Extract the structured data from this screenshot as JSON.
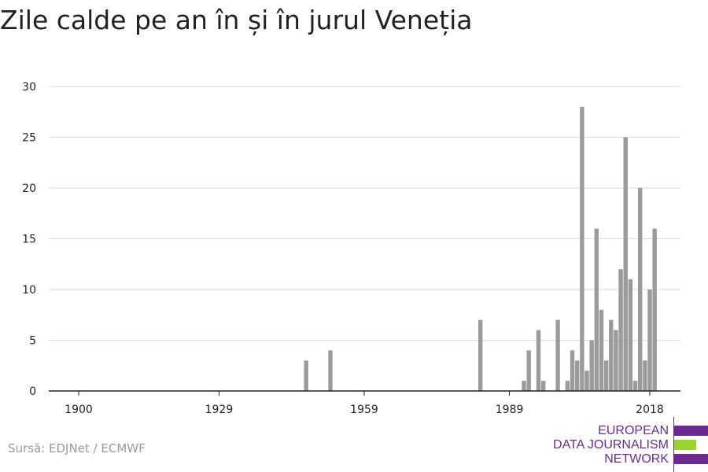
{
  "title": "Zile calde pe an în și în jurul Veneția",
  "source": "Sursă: EDJNet / ECMWF",
  "logo": {
    "lines": [
      "EUROPEAN",
      "DATA JOURNALISM",
      "NETWORK"
    ],
    "colors": {
      "purple": "#6b2a8f",
      "green": "#9bd42a"
    }
  },
  "colors": {
    "bar": "#9b9b9b",
    "grid": "#dddddd",
    "axis": "#222222"
  },
  "chart_data": {
    "type": "bar",
    "title": "Zile calde pe an în și în jurul Veneția",
    "xlabel": "",
    "ylabel": "",
    "xlim": [
      1900,
      2018
    ],
    "ylim": [
      0,
      30
    ],
    "x_ticks": [
      1900,
      1929,
      1959,
      1989,
      2018
    ],
    "y_ticks": [
      0,
      5,
      10,
      15,
      20,
      25,
      30
    ],
    "grid": true,
    "x": [
      1947,
      1952,
      1983,
      1992,
      1993,
      1995,
      1996,
      1999,
      2001,
      2002,
      2003,
      2004,
      2005,
      2006,
      2007,
      2008,
      2009,
      2010,
      2011,
      2012,
      2013,
      2014,
      2015,
      2016,
      2017,
      2018
    ],
    "values": [
      3,
      4,
      7,
      1,
      4,
      6,
      1,
      7,
      1,
      4,
      3,
      28,
      2,
      5,
      16,
      8,
      3,
      7,
      6,
      12,
      25,
      11,
      1,
      20,
      3,
      10
    ],
    "extra_points": [
      [
        2019,
        16
      ]
    ]
  }
}
